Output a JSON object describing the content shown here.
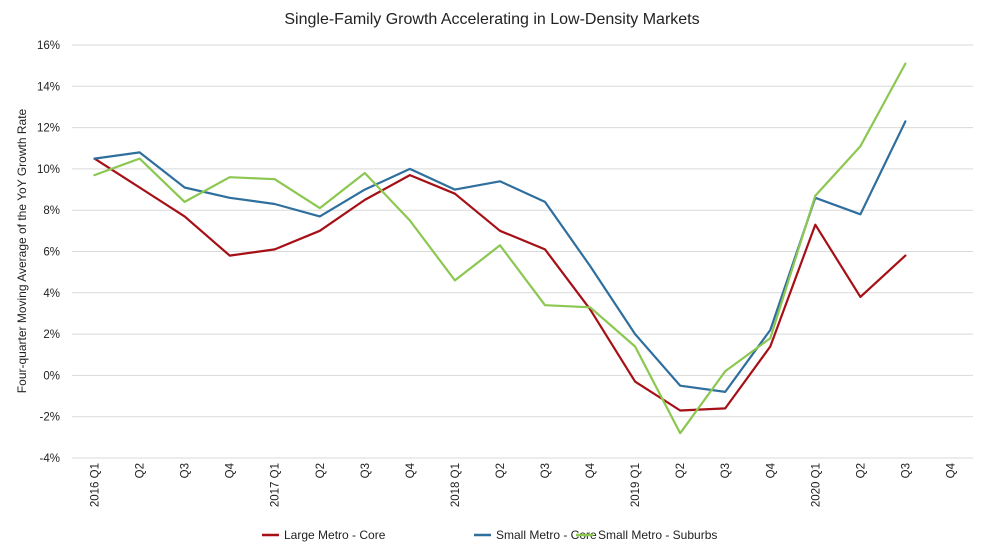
{
  "chart_data": {
    "type": "line",
    "title": "Single-Family Growth Accelerating in Low-Density Markets",
    "xlabel": "",
    "ylabel": "Four-quarter Moving Average of the YoY Growth Rate",
    "categories": [
      "2016 Q1",
      "Q2",
      "Q3",
      "Q4",
      "2017 Q1",
      "Q2",
      "Q3",
      "Q4",
      "2018 Q1",
      "Q2",
      "Q3",
      "Q4",
      "2019 Q1",
      "Q2",
      "Q3",
      "Q4",
      "2020 Q1",
      "Q2",
      "Q3",
      "Q4"
    ],
    "ylim": [
      -4,
      16
    ],
    "yticks": [
      -4,
      -2,
      0,
      2,
      4,
      6,
      8,
      10,
      12,
      14,
      16
    ],
    "ytick_labels": [
      "-4%",
      "-2%",
      "0%",
      "2%",
      "4%",
      "6%",
      "8%",
      "10%",
      "12%",
      "14%",
      "16%"
    ],
    "grid": true,
    "legend_position": "bottom",
    "series": [
      {
        "name": "Large Metro - Core",
        "color": "#a50f15",
        "values": [
          10.5,
          9.1,
          7.7,
          5.8,
          6.1,
          7.0,
          8.5,
          9.7,
          8.8,
          7.0,
          6.1,
          3.2,
          -0.3,
          -1.7,
          -1.6,
          1.4,
          7.3,
          3.8,
          5.8,
          null
        ]
      },
      {
        "name": "Small Metro - Core",
        "color": "#2e6f9e",
        "values": [
          10.5,
          10.8,
          9.1,
          8.6,
          8.3,
          7.7,
          9.0,
          10.0,
          9.0,
          9.4,
          8.4,
          5.3,
          2.0,
          -0.5,
          -0.8,
          2.2,
          8.6,
          7.8,
          12.3,
          null
        ]
      },
      {
        "name": "Small Metro - Suburbs",
        "color": "#8cc751",
        "values": [
          9.7,
          10.5,
          8.4,
          9.6,
          9.5,
          8.1,
          9.8,
          7.5,
          4.6,
          6.3,
          3.4,
          3.3,
          1.4,
          -2.8,
          0.2,
          1.8,
          8.7,
          11.1,
          15.1,
          null
        ]
      }
    ]
  }
}
